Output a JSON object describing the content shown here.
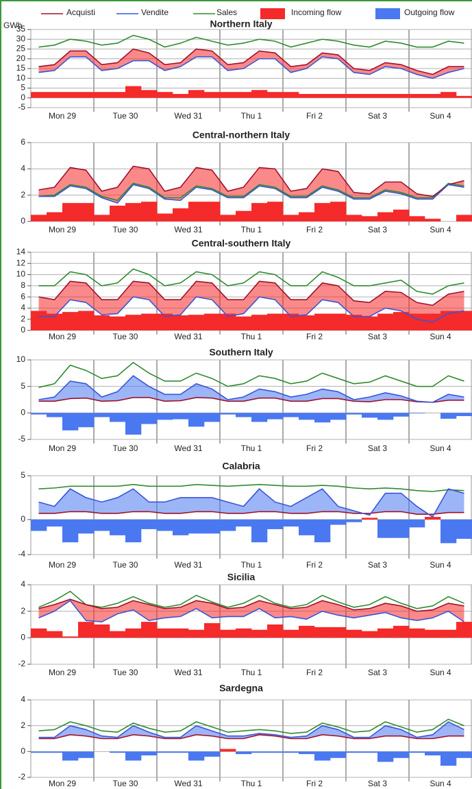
{
  "legend": [
    {
      "name": "Acquisti",
      "color": "#a0102a"
    },
    {
      "name": "Vendite",
      "color": "#3a55d8"
    },
    {
      "name": "Sales",
      "color": "#2e8b2e"
    },
    {
      "name": "Incoming flow",
      "color": "#f52a2a"
    },
    {
      "name": "Outgoing flow",
      "color": "#4a78f0"
    }
  ],
  "unit": "GWh",
  "chart_data": [
    {
      "type": "flow",
      "title": "Northern Italy",
      "categories": [
        "Mon 29",
        "Tue 30",
        "Wed 31",
        "Thu 1",
        "Fri 2",
        "Sat 3",
        "Sun 4"
      ],
      "ylim": [
        -5,
        35
      ],
      "yticks": [
        -5,
        0,
        5,
        10,
        15,
        20,
        25,
        30,
        35
      ],
      "acquisti": [
        16,
        17,
        24,
        24,
        17,
        18,
        25,
        23,
        17,
        18,
        25,
        24,
        17,
        18,
        24,
        23,
        16,
        17,
        23,
        22,
        15,
        14,
        18,
        17,
        14,
        12,
        16,
        16
      ],
      "vendite": [
        13,
        14,
        21,
        21,
        14,
        15,
        19,
        19,
        14,
        16,
        21,
        21,
        14,
        15,
        20,
        20,
        13,
        15,
        21,
        20,
        13,
        12,
        16,
        15,
        12,
        10,
        13,
        15
      ],
      "sales": [
        26,
        27,
        30,
        29,
        27,
        28,
        32,
        30,
        26,
        28,
        31,
        29,
        27,
        28,
        30,
        29,
        26,
        28,
        30,
        29,
        27,
        26,
        29,
        28,
        26,
        26,
        29,
        28
      ],
      "flow": [
        3,
        3,
        3,
        3,
        3,
        3,
        6,
        4,
        3,
        2,
        4,
        3,
        3,
        3,
        4,
        3,
        3,
        2,
        2,
        2,
        2,
        2,
        2,
        2,
        2,
        2,
        3,
        1
      ]
    },
    {
      "type": "flow",
      "title": "Central-northern Italy",
      "categories": [
        "Mon 29",
        "Tue 30",
        "Wed 31",
        "Thu 1",
        "Fri 2",
        "Sat 3",
        "Sun 4"
      ],
      "ylim": [
        0,
        6
      ],
      "yticks": [
        0,
        2,
        4,
        6
      ],
      "acquisti": [
        2.4,
        2.6,
        4.1,
        3.9,
        2.3,
        2.6,
        4.2,
        4.0,
        2.3,
        2.6,
        4.1,
        3.9,
        2.3,
        2.6,
        4.1,
        4.0,
        2.3,
        2.5,
        4.0,
        3.8,
        2.2,
        2.1,
        3.0,
        3.0,
        2.1,
        1.9,
        2.8,
        3.1
      ],
      "vendite": [
        1.9,
        1.9,
        2.7,
        2.5,
        1.8,
        1.4,
        2.8,
        2.5,
        1.7,
        1.6,
        2.6,
        2.4,
        1.8,
        1.8,
        2.7,
        2.5,
        1.8,
        1.8,
        2.6,
        2.3,
        1.7,
        1.7,
        2.3,
        2.1,
        1.7,
        1.7,
        2.8,
        2.6
      ],
      "sales": [
        1.9,
        2.0,
        2.8,
        2.6,
        1.9,
        1.6,
        2.9,
        2.6,
        1.8,
        1.8,
        2.7,
        2.5,
        1.9,
        1.9,
        2.8,
        2.6,
        1.9,
        1.9,
        2.7,
        2.4,
        1.8,
        1.8,
        2.4,
        2.2,
        1.8,
        1.8,
        2.9,
        2.7
      ],
      "flow": [
        0.5,
        0.7,
        1.4,
        1.4,
        0.5,
        1.2,
        1.4,
        1.5,
        0.6,
        1.0,
        1.5,
        1.5,
        0.5,
        0.8,
        1.4,
        1.5,
        0.5,
        0.7,
        1.4,
        1.5,
        0.5,
        0.4,
        0.7,
        0.9,
        0.4,
        0.2,
        0,
        0.5
      ]
    },
    {
      "type": "flow",
      "title": "Central-southern Italy",
      "categories": [
        "Mon 29",
        "Tue 30",
        "Wed 31",
        "Thu 1",
        "Fri 2",
        "Sat 3",
        "Sun 4"
      ],
      "ylim": [
        0,
        14
      ],
      "yticks": [
        0,
        2,
        4,
        6,
        8,
        10,
        12,
        14
      ],
      "acquisti": [
        6,
        5.5,
        8.8,
        8.5,
        5.5,
        5.5,
        8.8,
        8.5,
        5.5,
        5.5,
        8.8,
        8.5,
        5.5,
        5.5,
        8.8,
        8.5,
        5.5,
        5.5,
        8.5,
        8,
        5.3,
        5,
        7,
        6.8,
        5,
        4.5,
        6.5,
        7
      ],
      "vendite": [
        2.5,
        2.5,
        5.5,
        5,
        2.8,
        3,
        6,
        5.5,
        2.5,
        2.8,
        6,
        5.5,
        2.5,
        3,
        6,
        5.5,
        2.5,
        2.8,
        5.5,
        5,
        2.5,
        2.5,
        4,
        3.5,
        2,
        1.5,
        3,
        3.5
      ],
      "sales": [
        8,
        8,
        10.5,
        10,
        8,
        8.5,
        11,
        10,
        8,
        8.5,
        10.5,
        10,
        8,
        8.5,
        10.5,
        10,
        8,
        8,
        10.5,
        9.5,
        8,
        8,
        8.5,
        9,
        7,
        6.5,
        8,
        8.5
      ],
      "flow": [
        3.5,
        3,
        3.3,
        3.5,
        2.7,
        2.5,
        2.8,
        3,
        3,
        2.7,
        2.8,
        3,
        3,
        2.5,
        2.8,
        3,
        3,
        2.7,
        3,
        3,
        2.8,
        2.5,
        3,
        3.3,
        3,
        3,
        3.5,
        3.5
      ]
    },
    {
      "type": "flow",
      "title": "Southern Italy",
      "categories": [
        "Mon 29",
        "Tue 30",
        "Wed 31",
        "Thu 1",
        "Fri 2",
        "Sat 3",
        "Sun 4"
      ],
      "ylim": [
        -5,
        10
      ],
      "yticks": [
        -5,
        0,
        5,
        10
      ],
      "acquisti": [
        2.2,
        2.2,
        2.7,
        2.8,
        2.2,
        2.3,
        2.9,
        2.9,
        2.2,
        2.3,
        2.9,
        2.8,
        2.2,
        2.2,
        2.8,
        2.8,
        2.2,
        2.2,
        2.7,
        2.7,
        2.2,
        2.1,
        2.5,
        2.5,
        2.1,
        2,
        2.4,
        2.4
      ],
      "vendite": [
        2.5,
        3,
        6,
        5.5,
        3,
        4,
        7,
        5,
        3.5,
        3.5,
        5.5,
        4.5,
        2.5,
        3,
        4.5,
        4,
        3,
        3.5,
        4.5,
        4,
        2.5,
        3,
        3.8,
        3.2,
        2.2,
        2,
        3.5,
        3
      ],
      "sales": [
        4.8,
        5.5,
        9,
        8,
        6.5,
        7,
        9.5,
        7.5,
        6,
        6,
        7.5,
        6.5,
        5,
        5.5,
        7,
        6.5,
        5.5,
        6,
        7.5,
        6.5,
        5.5,
        5.8,
        7,
        6,
        5,
        5,
        7,
        6
      ],
      "flow": [
        -0.3,
        -0.8,
        -3.3,
        -2.7,
        -0.8,
        -1.7,
        -4.1,
        -2.1,
        -1.3,
        -1.2,
        -2.6,
        -1.7,
        -0.3,
        -0.8,
        -1.7,
        -1.2,
        -0.8,
        -1.3,
        -1.8,
        -1.3,
        -0.3,
        -0.9,
        -1.3,
        -0.7,
        -0.1,
        0,
        -1.1,
        -0.6
      ]
    },
    {
      "type": "flow",
      "title": "Calabria",
      "categories": [
        "Mon 29",
        "Tue 30",
        "Wed 31",
        "Thu 1",
        "Fri 2",
        "Sat 3",
        "Sun 4"
      ],
      "ylim": [
        -4,
        5
      ],
      "yticks": [
        -4,
        0,
        5
      ],
      "acquisti": [
        0.7,
        0.7,
        0.9,
        0.9,
        0.7,
        0.7,
        0.9,
        0.9,
        0.7,
        0.7,
        0.9,
        0.9,
        0.7,
        0.7,
        0.9,
        0.9,
        0.7,
        0.7,
        0.9,
        0.9,
        0.7,
        0.7,
        0.9,
        0.9,
        0.6,
        0.6,
        0.8,
        0.8
      ],
      "vendite": [
        2,
        1.5,
        3.5,
        2.5,
        2,
        2.5,
        3.5,
        2,
        2,
        2.5,
        2.5,
        2.5,
        2,
        1.5,
        3.5,
        2,
        1.5,
        2.5,
        3.5,
        1.5,
        1,
        0.5,
        3,
        3,
        1.5,
        0.3,
        3.5,
        3
      ],
      "sales": [
        3.5,
        3.6,
        3.8,
        3.8,
        3.8,
        3.8,
        4,
        3.8,
        3.8,
        3.8,
        4,
        3.9,
        3.8,
        3.9,
        4,
        3.9,
        3.8,
        3.8,
        3.9,
        3.8,
        3.6,
        3.5,
        3.6,
        3.5,
        3.3,
        3.2,
        3.4,
        3.3
      ],
      "flow": [
        -1.3,
        -0.8,
        -2.6,
        -1.6,
        -1.3,
        -1.8,
        -2.6,
        -1.1,
        -1.3,
        -1.8,
        -1.6,
        -1.6,
        -1.3,
        -0.8,
        -2.6,
        -1.1,
        -0.8,
        -1.8,
        -2.6,
        -0.6,
        -0.3,
        0.2,
        -2.1,
        -2.1,
        -0.9,
        0.3,
        -2.7,
        -2.2
      ]
    },
    {
      "type": "flow",
      "title": "Sicilia",
      "categories": [
        "Mon 29",
        "Tue 30",
        "Wed 31",
        "Thu 1",
        "Fri 2",
        "Sat 3",
        "Sun 4"
      ],
      "ylim": [
        -2,
        4
      ],
      "yticks": [
        -2,
        0,
        2,
        4
      ],
      "acquisti": [
        2.2,
        2.5,
        2.9,
        2.5,
        2.2,
        2.3,
        2.8,
        2.5,
        2.2,
        2.3,
        2.8,
        2.6,
        2.2,
        2.3,
        2.8,
        2.5,
        2.2,
        2.3,
        2.8,
        2.5,
        2.1,
        2.2,
        2.6,
        2.4,
        2,
        2.1,
        2.6,
        2.4
      ],
      "vendite": [
        1.5,
        2,
        2.8,
        1.3,
        1.2,
        1.8,
        2.1,
        1.3,
        1.5,
        1.6,
        2.2,
        1.5,
        1.6,
        1.6,
        2.2,
        1.5,
        1.6,
        1.4,
        2.0,
        1.7,
        1.5,
        1.7,
        1.9,
        1.5,
        1.3,
        1.5,
        2,
        1.2
      ],
      "sales": [
        2.3,
        2.8,
        3.5,
        2.5,
        2.3,
        2.6,
        3.1,
        2.6,
        2.3,
        2.5,
        3.2,
        2.7,
        2.3,
        2.6,
        3.2,
        2.6,
        2.3,
        2.5,
        3.2,
        2.7,
        2.3,
        2.5,
        3.1,
        2.6,
        2.2,
        2.4,
        3.1,
        2.6
      ],
      "flow": [
        0.7,
        0.5,
        0.1,
        1.2,
        1.0,
        0.5,
        0.7,
        1.2,
        0.7,
        0.7,
        0.6,
        1.1,
        0.6,
        0.7,
        0.6,
        1.0,
        0.6,
        0.9,
        0.8,
        0.8,
        0.6,
        0.5,
        0.7,
        0.9,
        0.7,
        0.6,
        0.6,
        1.2
      ]
    },
    {
      "type": "flow",
      "title": "Sardegna",
      "categories": [
        "Mon 29",
        "Tue 30",
        "Wed 31",
        "Thu 1",
        "Fri 2",
        "Sat 3",
        "Sun 4"
      ],
      "ylim": [
        -2,
        4
      ],
      "yticks": [
        -2,
        0,
        2,
        4
      ],
      "acquisti": [
        1.0,
        1.0,
        1.3,
        1.2,
        1.0,
        1.0,
        1.3,
        1.2,
        1.0,
        1.0,
        1.3,
        1.2,
        1.0,
        1.0,
        1.3,
        1.2,
        1.0,
        1.0,
        1.3,
        1.2,
        1.0,
        1.0,
        1.2,
        1.2,
        1.0,
        1.0,
        1.2,
        1.2
      ],
      "vendite": [
        1.1,
        1.1,
        2.0,
        1.7,
        1.2,
        1.1,
        2.0,
        1.5,
        1.1,
        1.1,
        2.0,
        1.6,
        1.2,
        1.2,
        1.4,
        1.3,
        1.1,
        1.2,
        2.0,
        1.7,
        1.1,
        1.1,
        2.0,
        1.7,
        1.1,
        1.3,
        2.3,
        1.7
      ],
      "sales": [
        1.6,
        1.7,
        2.3,
        2.0,
        1.6,
        1.5,
        2.2,
        1.8,
        1.5,
        1.6,
        2.3,
        1.9,
        1.5,
        1.6,
        1.7,
        1.6,
        1.4,
        1.5,
        2.2,
        1.9,
        1.5,
        1.6,
        2.3,
        1.9,
        1.5,
        1.7,
        2.5,
        2.0
      ],
      "flow": [
        -0.1,
        -0.1,
        -0.7,
        -0.5,
        0,
        -0.1,
        -0.7,
        -0.3,
        -0.1,
        -0.1,
        -0.7,
        -0.4,
        0.2,
        -0.2,
        -0.1,
        -0.1,
        -0.1,
        -0.2,
        -0.7,
        -0.5,
        -0.1,
        -0.1,
        -0.8,
        -0.5,
        -0.1,
        -0.3,
        -1.1,
        -0.5
      ]
    }
  ]
}
